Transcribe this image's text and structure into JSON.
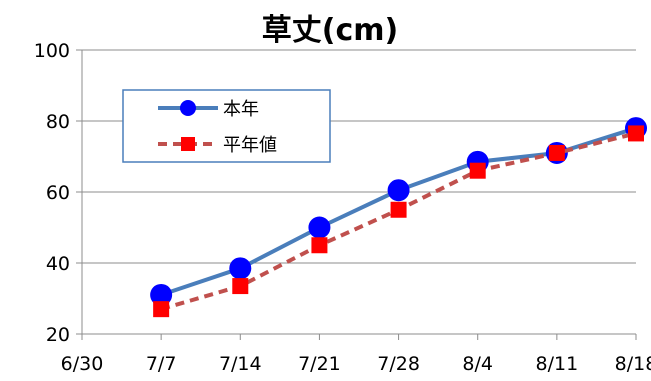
{
  "chart_data": {
    "type": "line",
    "title": "草丈(cm)",
    "xlabel": "",
    "ylabel": "",
    "x_ticks": [
      "6/30",
      "7/7",
      "7/14",
      "7/21",
      "7/28",
      "8/4",
      "8/11",
      "8/18"
    ],
    "categories": [
      "7/7",
      "7/14",
      "7/21",
      "7/28",
      "8/4",
      "8/11",
      "8/18"
    ],
    "ylim": [
      20,
      100
    ],
    "y_ticks": [
      "20",
      "40",
      "60",
      "80",
      "100"
    ],
    "grid": true,
    "legend_position": "top-left",
    "series": [
      {
        "name": "本年",
        "values": [
          31,
          38.5,
          50,
          60.5,
          68.5,
          71,
          78
        ],
        "color": "#4A7EBB",
        "marker_color": "#0000FF",
        "marker": "circle",
        "line_style": "solid"
      },
      {
        "name": "平年値",
        "values": [
          27,
          33.5,
          45,
          55,
          66,
          71,
          76.5
        ],
        "color": "#C0504D",
        "marker_color": "#FF0000",
        "marker": "square",
        "line_style": "dashed"
      }
    ]
  }
}
